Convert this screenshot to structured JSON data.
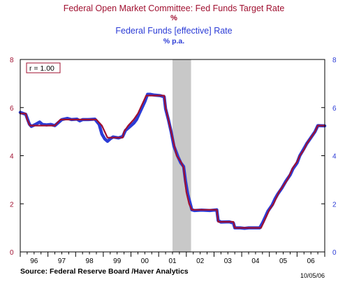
{
  "colors": {
    "fed_target": "#a01030",
    "effective": "#2b3bd6",
    "recession": "#c8c8c8",
    "axis": "#000000"
  },
  "chart_data": {
    "type": "line",
    "title": "Federal Open Market Committee: Fed Funds Target Rate",
    "title_unit": "%",
    "subtitle": "Federal Funds [effective] Rate",
    "subtitle_unit": "% p.a.",
    "annotation": "r = 1.00",
    "source": "Source:  Federal Reserve Board /Haver Analytics",
    "date_stamp": "10/05/06",
    "x_tick_labels": [
      "96",
      "97",
      "98",
      "99",
      "00",
      "01",
      "02",
      "03",
      "04",
      "05",
      "06"
    ],
    "x_range": [
      1995.75,
      2006.75
    ],
    "y_ticks_left": [
      0,
      2,
      4,
      6,
      8
    ],
    "y_ticks_right": [
      0,
      2,
      4,
      6,
      8
    ],
    "ylim": [
      0,
      8
    ],
    "grid": false,
    "recession_shading": [
      2001.25,
      2001.92
    ],
    "series": [
      {
        "name": "Federal Open Market Committee: Fed Funds Target Rate",
        "color_key": "fed_target",
        "points": [
          [
            1995.75,
            5.75
          ],
          [
            1995.95,
            5.75
          ],
          [
            1996.0,
            5.5
          ],
          [
            1996.1,
            5.25
          ],
          [
            1996.45,
            5.25
          ],
          [
            1996.7,
            5.25
          ],
          [
            1997.0,
            5.25
          ],
          [
            1997.2,
            5.5
          ],
          [
            1997.5,
            5.5
          ],
          [
            1997.8,
            5.5
          ],
          [
            1998.0,
            5.5
          ],
          [
            1998.5,
            5.5
          ],
          [
            1998.7,
            5.25
          ],
          [
            1998.8,
            5.0
          ],
          [
            1998.9,
            4.75
          ],
          [
            1999.0,
            4.75
          ],
          [
            1999.2,
            4.75
          ],
          [
            1999.45,
            4.75
          ],
          [
            1999.5,
            5.0
          ],
          [
            1999.65,
            5.25
          ],
          [
            1999.85,
            5.5
          ],
          [
            2000.0,
            5.75
          ],
          [
            2000.1,
            6.0
          ],
          [
            2000.2,
            6.25
          ],
          [
            2000.3,
            6.5
          ],
          [
            2000.4,
            6.5
          ],
          [
            2000.95,
            6.5
          ],
          [
            2001.0,
            6.0
          ],
          [
            2001.1,
            5.5
          ],
          [
            2001.2,
            5.0
          ],
          [
            2001.3,
            4.5
          ],
          [
            2001.4,
            4.0
          ],
          [
            2001.55,
            3.75
          ],
          [
            2001.65,
            3.5
          ],
          [
            2001.7,
            3.0
          ],
          [
            2001.75,
            2.5
          ],
          [
            2001.85,
            2.0
          ],
          [
            2001.95,
            1.75
          ],
          [
            2002.0,
            1.75
          ],
          [
            2002.85,
            1.75
          ],
          [
            2002.9,
            1.25
          ],
          [
            2003.0,
            1.25
          ],
          [
            2003.45,
            1.25
          ],
          [
            2003.5,
            1.0
          ],
          [
            2003.75,
            1.0
          ],
          [
            2004.0,
            1.0
          ],
          [
            2004.45,
            1.0
          ],
          [
            2004.55,
            1.25
          ],
          [
            2004.65,
            1.5
          ],
          [
            2004.75,
            1.75
          ],
          [
            2004.9,
            2.0
          ],
          [
            2005.0,
            2.25
          ],
          [
            2005.1,
            2.5
          ],
          [
            2005.25,
            2.75
          ],
          [
            2005.4,
            3.0
          ],
          [
            2005.5,
            3.25
          ],
          [
            2005.6,
            3.5
          ],
          [
            2005.75,
            3.75
          ],
          [
            2005.85,
            4.0
          ],
          [
            2006.0,
            4.25
          ],
          [
            2006.1,
            4.5
          ],
          [
            2006.25,
            4.75
          ],
          [
            2006.4,
            5.0
          ],
          [
            2006.5,
            5.25
          ],
          [
            2006.75,
            5.25
          ]
        ]
      },
      {
        "name": "Federal Funds [effective] Rate",
        "color_key": "effective",
        "points": [
          [
            1995.75,
            5.8
          ],
          [
            1995.95,
            5.72
          ],
          [
            1996.0,
            5.56
          ],
          [
            1996.08,
            5.31
          ],
          [
            1996.15,
            5.22
          ],
          [
            1996.3,
            5.3
          ],
          [
            1996.45,
            5.4
          ],
          [
            1996.55,
            5.3
          ],
          [
            1996.7,
            5.28
          ],
          [
            1996.85,
            5.3
          ],
          [
            1997.0,
            5.25
          ],
          [
            1997.15,
            5.4
          ],
          [
            1997.25,
            5.5
          ],
          [
            1997.45,
            5.55
          ],
          [
            1997.6,
            5.5
          ],
          [
            1997.8,
            5.52
          ],
          [
            1997.9,
            5.45
          ],
          [
            1998.0,
            5.5
          ],
          [
            1998.2,
            5.5
          ],
          [
            1998.45,
            5.52
          ],
          [
            1998.6,
            5.3
          ],
          [
            1998.7,
            4.9
          ],
          [
            1998.8,
            4.7
          ],
          [
            1998.9,
            4.6
          ],
          [
            1999.0,
            4.7
          ],
          [
            1999.1,
            4.78
          ],
          [
            1999.3,
            4.74
          ],
          [
            1999.45,
            4.8
          ],
          [
            1999.55,
            5.05
          ],
          [
            1999.7,
            5.2
          ],
          [
            1999.85,
            5.35
          ],
          [
            1999.95,
            5.5
          ],
          [
            2000.05,
            5.75
          ],
          [
            2000.15,
            6.0
          ],
          [
            2000.25,
            6.25
          ],
          [
            2000.35,
            6.55
          ],
          [
            2000.45,
            6.55
          ],
          [
            2000.6,
            6.52
          ],
          [
            2000.8,
            6.5
          ],
          [
            2000.95,
            6.45
          ],
          [
            2001.0,
            5.95
          ],
          [
            2001.1,
            5.5
          ],
          [
            2001.2,
            5.0
          ],
          [
            2001.3,
            4.4
          ],
          [
            2001.45,
            3.95
          ],
          [
            2001.55,
            3.7
          ],
          [
            2001.65,
            3.55
          ],
          [
            2001.72,
            2.95
          ],
          [
            2001.8,
            2.4
          ],
          [
            2001.88,
            2.05
          ],
          [
            2001.95,
            1.75
          ],
          [
            2002.05,
            1.72
          ],
          [
            2002.3,
            1.74
          ],
          [
            2002.6,
            1.72
          ],
          [
            2002.85,
            1.75
          ],
          [
            2002.9,
            1.3
          ],
          [
            2003.0,
            1.24
          ],
          [
            2003.3,
            1.25
          ],
          [
            2003.45,
            1.2
          ],
          [
            2003.5,
            1.0
          ],
          [
            2003.7,
            1.0
          ],
          [
            2003.85,
            0.98
          ],
          [
            2004.0,
            1.0
          ],
          [
            2004.4,
            1.0
          ],
          [
            2004.5,
            1.2
          ],
          [
            2004.6,
            1.45
          ],
          [
            2004.7,
            1.7
          ],
          [
            2004.85,
            1.95
          ],
          [
            2004.95,
            2.2
          ],
          [
            2005.05,
            2.4
          ],
          [
            2005.2,
            2.65
          ],
          [
            2005.35,
            2.95
          ],
          [
            2005.5,
            3.2
          ],
          [
            2005.6,
            3.45
          ],
          [
            2005.75,
            3.7
          ],
          [
            2005.85,
            4.0
          ],
          [
            2006.0,
            4.3
          ],
          [
            2006.1,
            4.5
          ],
          [
            2006.25,
            4.75
          ],
          [
            2006.4,
            5.0
          ],
          [
            2006.5,
            5.25
          ],
          [
            2006.75,
            5.24
          ]
        ]
      }
    ]
  }
}
